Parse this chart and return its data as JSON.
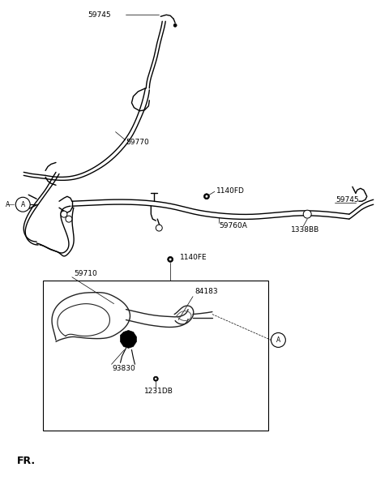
{
  "background_color": "#ffffff",
  "line_color": "#000000",
  "line_width": 1.0,
  "label_fontsize": 6.5,
  "fr_label": "FR.",
  "fr_fontsize": 9,
  "labels": {
    "59745_top": "59745",
    "59770": "59770",
    "A_left": "A",
    "1140FD": "1140FD",
    "59760A": "59760A",
    "1338BB": "1338BB",
    "59745_right": "59745",
    "59710": "59710",
    "1140FE": "1140FE",
    "84183": "84183",
    "93830": "93830",
    "1231DB": "1231DB",
    "A_box": "A"
  }
}
